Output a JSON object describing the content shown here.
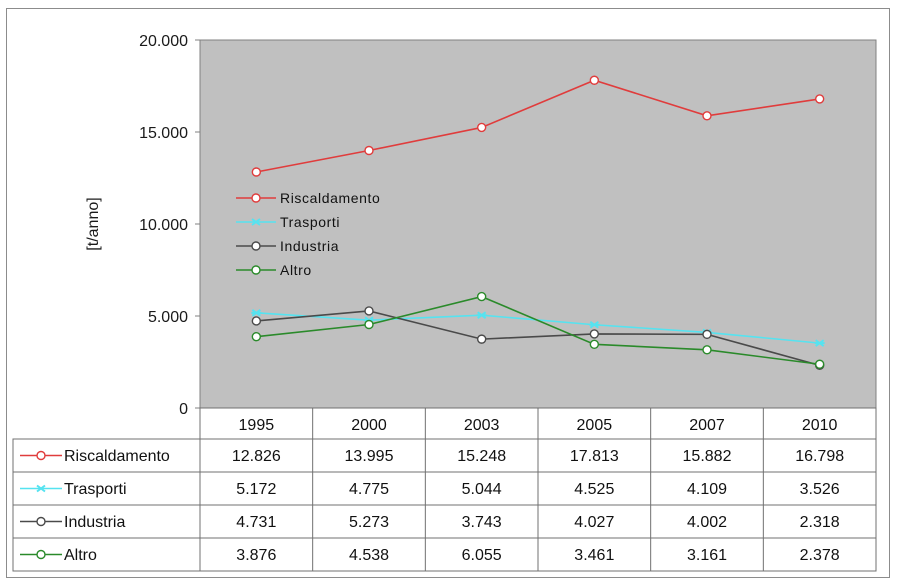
{
  "chart_data": {
    "type": "line",
    "ylabel": "[t/anno]",
    "ylim": [
      0,
      20000
    ],
    "yticks": [
      "0",
      "5.000",
      "10.000",
      "15.000",
      "20.000"
    ],
    "categories": [
      "1995",
      "2000",
      "2003",
      "2005",
      "2007",
      "2010"
    ],
    "grid": false,
    "legend_position": "left",
    "series": [
      {
        "name": "Riscaldamento",
        "color": "#e03c3c",
        "values": [
          12826,
          13995,
          15248,
          17813,
          15882,
          16798
        ],
        "labels": [
          "12.826",
          "13.995",
          "15.248",
          "17.813",
          "15.882",
          "16.798"
        ]
      },
      {
        "name": "Trasporti",
        "color": "#55e3f0",
        "values": [
          5172,
          4775,
          5044,
          4525,
          4109,
          3526
        ],
        "labels": [
          "5.172",
          "4.775",
          "5.044",
          "4.525",
          "4.109",
          "3.526"
        ]
      },
      {
        "name": "Industria",
        "color": "#4a4a4a",
        "values": [
          4731,
          5273,
          3743,
          4027,
          4002,
          2318
        ],
        "labels": [
          "4.731",
          "5.273",
          "3.743",
          "4.027",
          "4.002",
          "2.318"
        ]
      },
      {
        "name": "Altro",
        "color": "#2a8a2a",
        "values": [
          3876,
          4538,
          6055,
          3461,
          3161,
          2378
        ],
        "labels": [
          "3.876",
          "4.538",
          "6.055",
          "3.461",
          "3.161",
          "2.378"
        ]
      }
    ]
  }
}
